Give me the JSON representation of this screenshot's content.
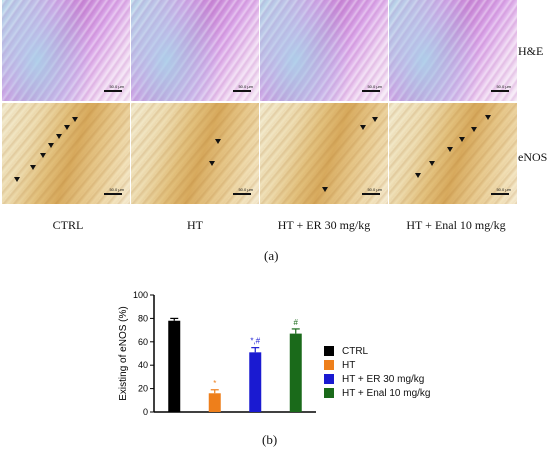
{
  "figure": {
    "row_labels": [
      "H&E",
      "eNOS"
    ],
    "column_labels": [
      "CTRL",
      "HT",
      "HT + ER 30 mg/kg",
      "HT + Enal 10 mg/kg"
    ],
    "scale_bar_label": "50.0 μm",
    "panel_a_label": "(a)",
    "panel_b_label": "(b)"
  },
  "chart_data": {
    "type": "bar",
    "categories": [
      "CTRL",
      "HT",
      "HT + ER 30 mg/kg",
      "HT + Enal 10 mg/kg"
    ],
    "values": [
      78,
      16,
      51,
      67
    ],
    "errors": [
      2,
      3,
      4,
      4
    ],
    "annotations": [
      "",
      "*",
      "*,#",
      "#"
    ],
    "colors": [
      "#000000",
      "#ee7f1b",
      "#1a1ad1",
      "#1a6a1a"
    ],
    "xlabel": "",
    "ylabel": "Existing of eNOS (%)",
    "ylim": [
      0,
      100
    ],
    "yticks": [
      0,
      20,
      40,
      60,
      80,
      100
    ],
    "legend_position": "right"
  }
}
